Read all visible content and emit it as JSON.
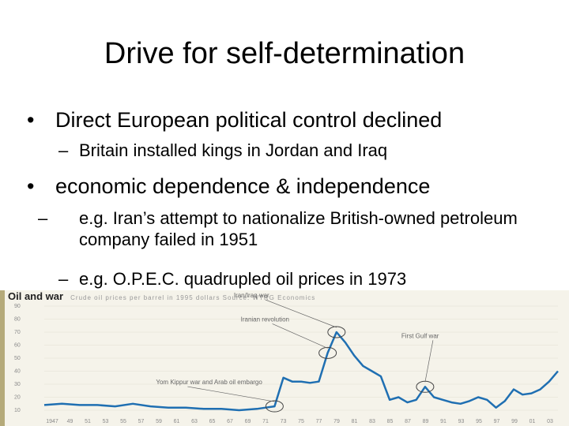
{
  "slide": {
    "title": "Drive for self-determination",
    "bullets": [
      {
        "text": "Direct European political control declined",
        "subs": [
          "Britain installed kings in Jordan and Iraq"
        ]
      },
      {
        "text": "economic dependence & independence",
        "subs": [
          "e.g. Iran’s attempt to nationalize British-owned petroleum company failed in 1951",
          "e.g. O.P.E.C. quadrupled oil prices in 1973"
        ]
      }
    ]
  },
  "chart_data": {
    "type": "line",
    "title": "Oil and war",
    "subtitle": "Crude oil prices per barrel in 1995 dollars  Source: WTRG Economics",
    "x": [
      1947,
      1949,
      1951,
      1953,
      1955,
      1957,
      1959,
      1961,
      1963,
      1965,
      1967,
      1969,
      1971,
      1972,
      1973,
      1974,
      1975,
      1976,
      1977,
      1978,
      1979,
      1980,
      1981,
      1982,
      1983,
      1984,
      1985,
      1986,
      1987,
      1988,
      1989,
      1990,
      1991,
      1992,
      1993,
      1994,
      1995,
      1996,
      1997,
      1998,
      1999,
      2000,
      2001,
      2002,
      2003,
      2004,
      2005
    ],
    "y": [
      14,
      15,
      14,
      14,
      13,
      15,
      13,
      12,
      12,
      11,
      11,
      10,
      11,
      12,
      13,
      35,
      32,
      32,
      31,
      32,
      54,
      70,
      62,
      52,
      44,
      40,
      36,
      18,
      20,
      16,
      18,
      28,
      20,
      18,
      16,
      15,
      17,
      20,
      18,
      12,
      17,
      26,
      22,
      23,
      26,
      32,
      40
    ],
    "xlim": [
      1947,
      2005
    ],
    "ylim": [
      10,
      90
    ],
    "yticks": [
      90,
      80,
      70,
      60,
      50,
      40,
      30,
      20,
      10
    ],
    "xticks": [
      "1947",
      "49",
      "51",
      "53",
      "55",
      "57",
      "59",
      "61",
      "63",
      "65",
      "67",
      "69",
      "71",
      "73",
      "75",
      "77",
      "79",
      "81",
      "83",
      "85",
      "87",
      "89",
      "91",
      "93",
      "95",
      "97",
      "99",
      "01",
      "03"
    ],
    "annotations": [
      {
        "label": "Iran/Iraq war",
        "x": 1980
      },
      {
        "label": "Iranian revolution",
        "x": 1979
      },
      {
        "label": "Yom Kippur war and Arab oil embargo",
        "x": 1973
      },
      {
        "label": "First Gulf war",
        "x": 1990
      }
    ]
  }
}
